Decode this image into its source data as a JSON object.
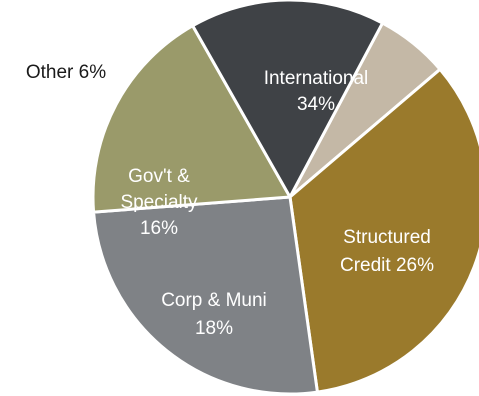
{
  "chart_data": {
    "type": "pie",
    "title": "",
    "slices": [
      {
        "label": "International",
        "value": 34,
        "value_text": "34%",
        "color": "#9a7a2c",
        "label_color": "#ffffff"
      },
      {
        "label": "Structured Credit",
        "value": 26,
        "value_text": "26%",
        "color": "#7f8286",
        "label_color": "#ffffff"
      },
      {
        "label": "Corp & Muni",
        "value": 18,
        "value_text": "18%",
        "color": "#9a9a6a",
        "label_color": "#ffffff"
      },
      {
        "label": "Gov't & Specialty",
        "value": 16,
        "value_text": "16%",
        "color": "#3f4246",
        "label_color": "#ffffff"
      },
      {
        "label": "Other",
        "value": 6,
        "value_text": "6%",
        "color": "#c4b8a6",
        "label_color": "#1a1a1a"
      }
    ],
    "data_labels": [
      {
        "lines": [
          "International",
          "34%"
        ]
      },
      {
        "lines": [
          "Structured",
          "Credit 26%"
        ]
      },
      {
        "lines": [
          "Corp & Muni",
          "18%"
        ]
      },
      {
        "lines": [
          "Gov't &",
          "Specialty",
          "16%"
        ]
      },
      {
        "lines": [
          "Other 6%"
        ]
      }
    ],
    "legend": "none",
    "start_angle": "Other slice begins at roughly 11 o'clock, slices proceed clockwise"
  }
}
